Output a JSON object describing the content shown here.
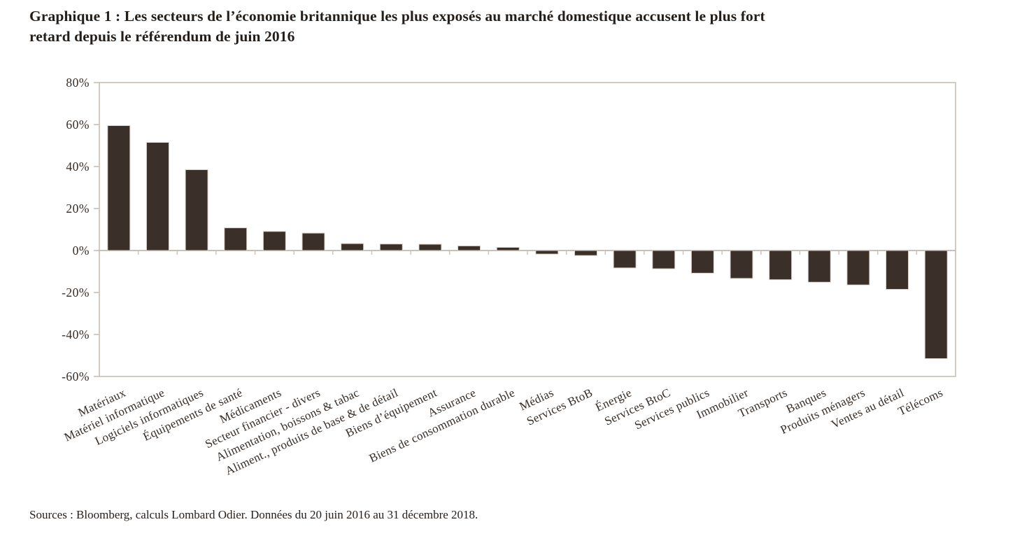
{
  "title": {
    "line1": "Graphique 1 : Les secteurs de l’économie britannique les plus exposés au marché domestique accusent le plus fort",
    "line2": "retard depuis le référendum de juin 2016"
  },
  "source": "Sources : Bloomberg, calculs Lombard Odier. Données du 20 juin 2016 au 31 décembre 2018.",
  "colors": {
    "bar": "#3a2f29",
    "bar_outline": "#d9d2c9",
    "axis": "#c9c0b6",
    "tick_text": "#352c26",
    "title_text": "#241e1a"
  },
  "chart_data": {
    "type": "bar",
    "title": "Graphique 1 : Les secteurs de l’économie britannique les plus exposés au marché domestique accusent le plus fort retard depuis le référendum de juin 2016",
    "unit": "%",
    "xlabel": "",
    "ylabel": "",
    "ylim": [
      -60,
      80
    ],
    "grid": false,
    "legend": false,
    "y_ticks": {
      "values": [
        80,
        60,
        40,
        20,
        0,
        -20,
        -40,
        -60
      ],
      "labels": [
        "80%",
        "60%",
        "40%",
        "20%",
        "0%",
        "-20%",
        "-40%",
        "-60%"
      ]
    },
    "categories": [
      "Matériaux",
      "Matériel informatique",
      "Logiciels informatiques",
      "Équipements de santé",
      "Médicaments",
      "Secteur financier - divers",
      "Alimentation, boissons & tabac",
      "Aliment., produits de base & de détail",
      "Biens d’équipement",
      "Assurance",
      "Biens de consommation durable",
      "Médias",
      "Services BtoB",
      "Énergie",
      "Services BtoC",
      "Services publics",
      "Immobilier",
      "Transports",
      "Banques",
      "Produits ménagers",
      "Ventes au détail",
      "Télécoms"
    ],
    "values": [
      59.5,
      51.5,
      38.5,
      10.8,
      9.1,
      8.3,
      3.3,
      3.1,
      3.0,
      2.2,
      1.5,
      -1.7,
      -2.4,
      -8.3,
      -8.7,
      -10.8,
      -13.3,
      -13.9,
      -15.1,
      -16.4,
      -18.5,
      -51.5
    ],
    "source": "Sources : Bloomberg, calculs Lombard Odier. Données du 20 juin 2016 au 31 décembre 2018."
  }
}
